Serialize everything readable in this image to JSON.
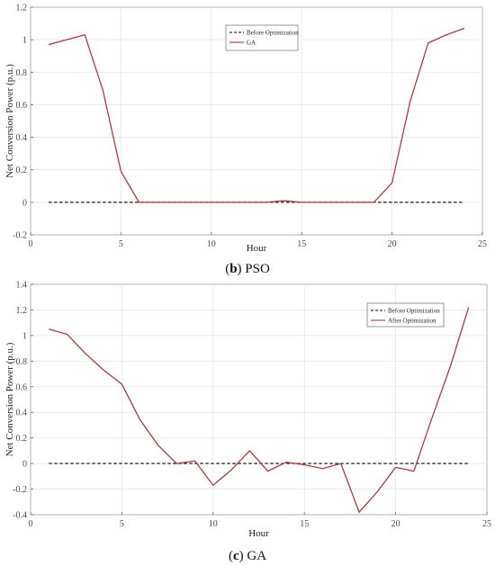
{
  "chart_data": [
    {
      "type": "line",
      "caption": {
        "letter": "b",
        "name": "PSO"
      },
      "xlabel": "Hour",
      "ylabel": "Net Conversion Power (p.u.)",
      "xlim": [
        0,
        25
      ],
      "ylim": [
        -0.2,
        1.2
      ],
      "xticks": [
        "0",
        "5",
        "10",
        "15",
        "20",
        "25"
      ],
      "yticks": [
        "-0.2",
        "0",
        "0.2",
        "0.4",
        "0.6",
        "0.8",
        "1",
        "1.2"
      ],
      "grid": true,
      "legend_position": "top-center",
      "series": [
        {
          "name": "Before Optimization",
          "style": "dashed",
          "color": "#000000",
          "x": [
            1,
            24
          ],
          "y": [
            0,
            0
          ]
        },
        {
          "name": "GA",
          "style": "solid",
          "color": "#b03a3a",
          "x": [
            1,
            2,
            3,
            4,
            5,
            6,
            7,
            8,
            9,
            10,
            11,
            12,
            13,
            14,
            15,
            16,
            17,
            18,
            19,
            20,
            21,
            22,
            23,
            24
          ],
          "y": [
            0.97,
            1.0,
            1.03,
            0.69,
            0.19,
            0.0,
            0.0,
            0.0,
            0.0,
            0.0,
            0.0,
            0.0,
            0.0,
            0.01,
            0.0,
            0.0,
            0.0,
            0.0,
            0.0,
            0.12,
            0.62,
            0.98,
            1.03,
            1.07
          ]
        }
      ]
    },
    {
      "type": "line",
      "caption": {
        "letter": "c",
        "name": "GA"
      },
      "xlabel": "Hour",
      "ylabel": "Net Conversion Power (p.u.)",
      "xlim": [
        0,
        25
      ],
      "ylim": [
        -0.4,
        1.4
      ],
      "xticks": [
        "0",
        "5",
        "10",
        "15",
        "20",
        "25"
      ],
      "yticks": [
        "-0.4",
        "-0.2",
        "0",
        "0.2",
        "0.4",
        "0.6",
        "0.8",
        "1",
        "1.2",
        "1.4"
      ],
      "grid": true,
      "legend_position": "top-right",
      "series": [
        {
          "name": "Before Optimization",
          "style": "dashed",
          "color": "#000000",
          "x": [
            1,
            24
          ],
          "y": [
            0,
            0
          ]
        },
        {
          "name": "After Optimization",
          "style": "solid",
          "color": "#b03a3a",
          "x": [
            1,
            2,
            3,
            4,
            5,
            6,
            7,
            8,
            9,
            10,
            11,
            12,
            13,
            14,
            15,
            16,
            17,
            18,
            19,
            20,
            21,
            22,
            23,
            24
          ],
          "y": [
            1.05,
            1.01,
            0.86,
            0.73,
            0.62,
            0.34,
            0.14,
            0.0,
            0.02,
            -0.17,
            -0.05,
            0.1,
            -0.06,
            0.01,
            -0.01,
            -0.04,
            0.0,
            -0.38,
            -0.22,
            -0.03,
            -0.06,
            0.36,
            0.76,
            1.22
          ]
        }
      ]
    }
  ]
}
